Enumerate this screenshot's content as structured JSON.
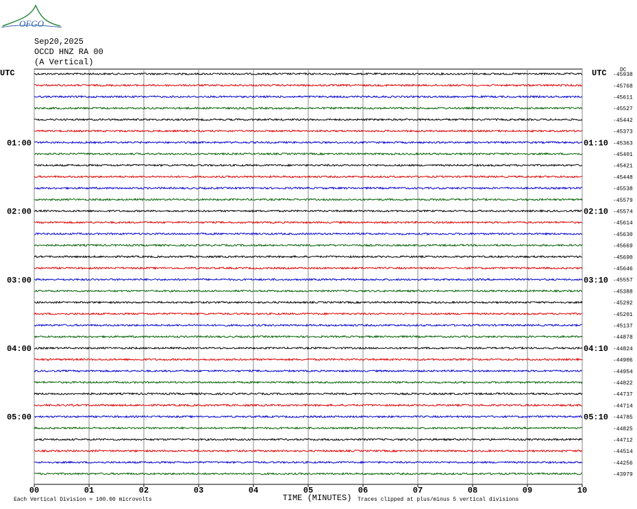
{
  "logo": "OFGO",
  "chart_data": {
    "type": "helicorder",
    "title": "Sep20,2025",
    "subtitle": "OCCD HNZ RA 00",
    "component": "(A Vertical)",
    "left_header": "UTC",
    "right_header": "UTC",
    "offset_header": "DC",
    "xlabel": "TIME (MINUTES)",
    "scale_note": "Each Vertical Division =  100.00 microvolts",
    "clip_note": "Traces clipped at plus/minus 5 vertical divisions",
    "xlim": [
      0,
      10
    ],
    "xticks": [
      {
        "value": 0,
        "label": "00"
      },
      {
        "value": 1,
        "label": "01"
      },
      {
        "value": 2,
        "label": "02"
      },
      {
        "value": 3,
        "label": "03"
      },
      {
        "value": 4,
        "label": "04"
      },
      {
        "value": 5,
        "label": "05"
      },
      {
        "value": 6,
        "label": "06"
      },
      {
        "value": 7,
        "label": "07"
      },
      {
        "value": 8,
        "label": "08"
      },
      {
        "value": 9,
        "label": "09"
      },
      {
        "value": 10,
        "label": "10"
      }
    ],
    "colors": [
      "#000000",
      "#e00000",
      "#0000d0",
      "#006000"
    ],
    "grid": true,
    "left_labels": [
      null,
      null,
      null,
      null,
      null,
      null,
      "01:00",
      null,
      null,
      null,
      null,
      null,
      "02:00",
      null,
      null,
      null,
      null,
      null,
      "03:00",
      null,
      null,
      null,
      null,
      null,
      "04:00",
      null,
      null,
      null,
      null,
      null,
      "05:00",
      null,
      null,
      null,
      null,
      null
    ],
    "right_labels": [
      null,
      null,
      null,
      null,
      null,
      null,
      "01:10",
      null,
      null,
      null,
      null,
      null,
      "02:10",
      null,
      null,
      null,
      null,
      null,
      "03:10",
      null,
      null,
      null,
      null,
      null,
      "04:10",
      null,
      null,
      null,
      null,
      null,
      "05:10",
      null,
      null,
      null,
      null,
      null
    ],
    "offsets": [
      -45938,
      -45768,
      -45611,
      -45527,
      -45442,
      -45373,
      -45363,
      -45401,
      -45421,
      -45448,
      -45538,
      -45579,
      -45574,
      -45614,
      -45630,
      -45669,
      -45690,
      -45646,
      -45557,
      -45388,
      -45292,
      -45201,
      -45137,
      -44878,
      -44824,
      -44906,
      -44954,
      -44822,
      -44737,
      -44714,
      -44785,
      -44825,
      -44712,
      -44514,
      -44256,
      -43979
    ]
  }
}
